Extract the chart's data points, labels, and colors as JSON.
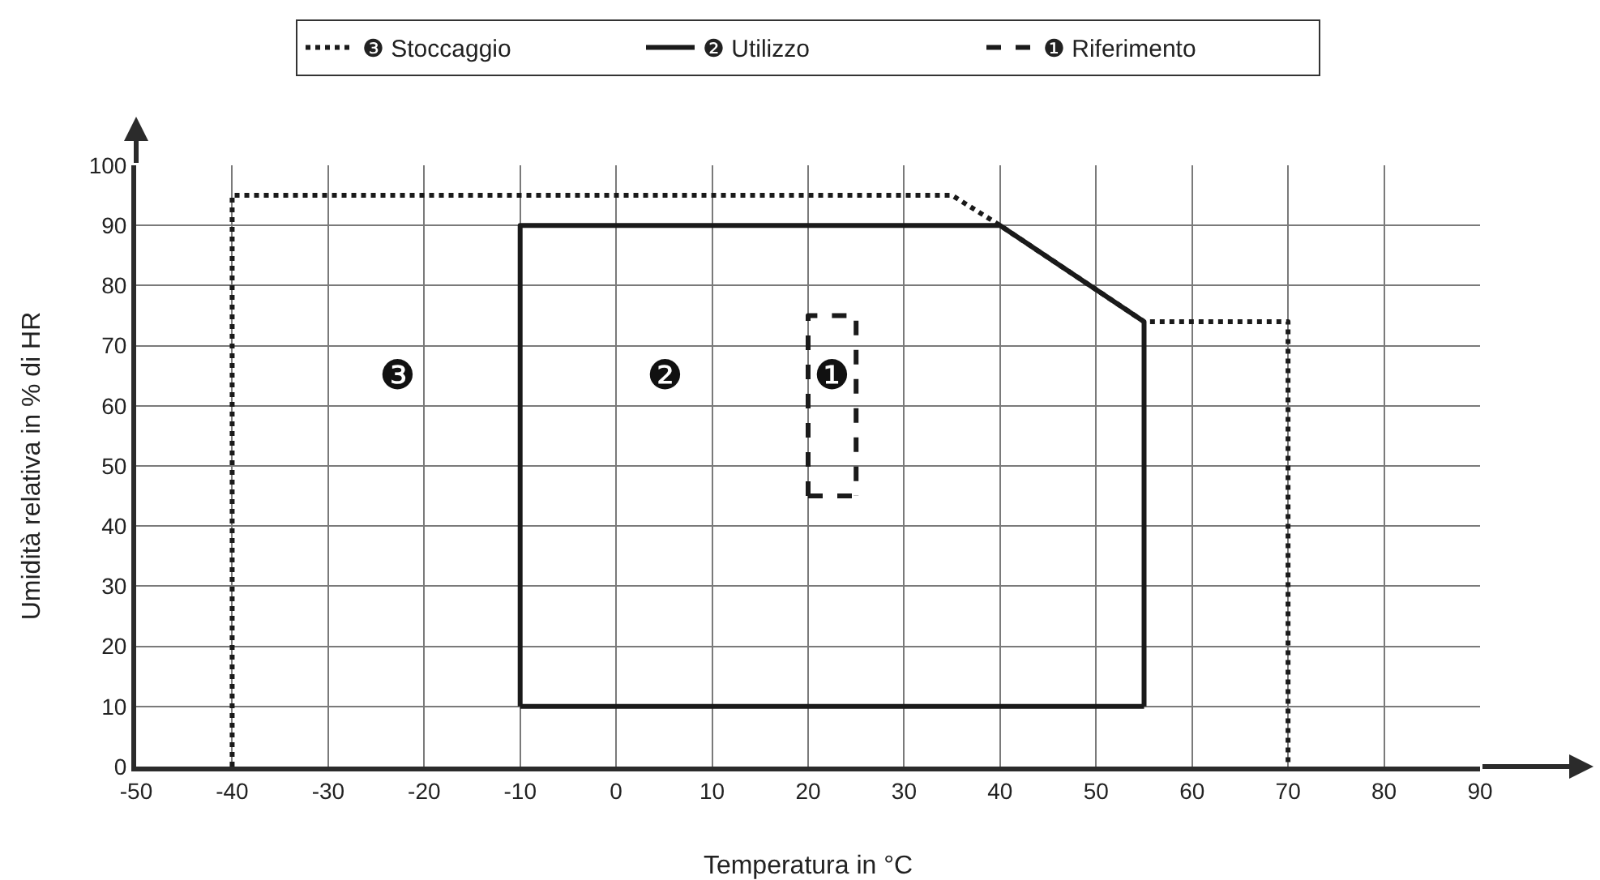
{
  "chart_data": {
    "type": "line",
    "xlabel": "Temperatura in °C",
    "ylabel": "Umidità relativa in % di HR",
    "xlim": [
      -50,
      90
    ],
    "ylim": [
      0,
      100
    ],
    "xticks": [
      -50,
      -40,
      -30,
      -20,
      -10,
      0,
      10,
      20,
      30,
      40,
      50,
      60,
      70,
      80,
      90
    ],
    "yticks": [
      0,
      10,
      20,
      30,
      40,
      50,
      60,
      70,
      80,
      90,
      100
    ],
    "grid": true,
    "legend": "top",
    "series": [
      {
        "name": "❸ Stoccaggio",
        "color": "#1a1a1a",
        "line_style": "dotted",
        "x": [
          -40,
          -40,
          35,
          40,
          55,
          70,
          70
        ],
        "values": [
          0,
          95,
          95,
          90,
          74,
          74,
          0
        ]
      },
      {
        "name": "❷ Utilizzo",
        "color": "#1a1a1a",
        "line_style": "solid",
        "x": [
          -10,
          -10,
          40,
          55,
          55
        ],
        "values": [
          10,
          90,
          90,
          74,
          10
        ]
      },
      {
        "name": "❶ Riferimento",
        "color": "#1a1a1a",
        "line_style": "dashed",
        "x": [
          20,
          20,
          25,
          25
        ],
        "values": [
          45,
          75,
          75,
          45
        ]
      },
      {
        "color": "#1a1a1a",
        "line_style": "solid",
        "x": [
          -10,
          55
        ],
        "values": [
          10,
          10
        ]
      },
      {
        "color": "#1a1a1a",
        "line_style": "dashed",
        "x": [
          20,
          25
        ],
        "values": [
          45,
          45
        ]
      }
    ],
    "annotations": [
      "❸",
      "❷",
      "❶"
    ]
  }
}
